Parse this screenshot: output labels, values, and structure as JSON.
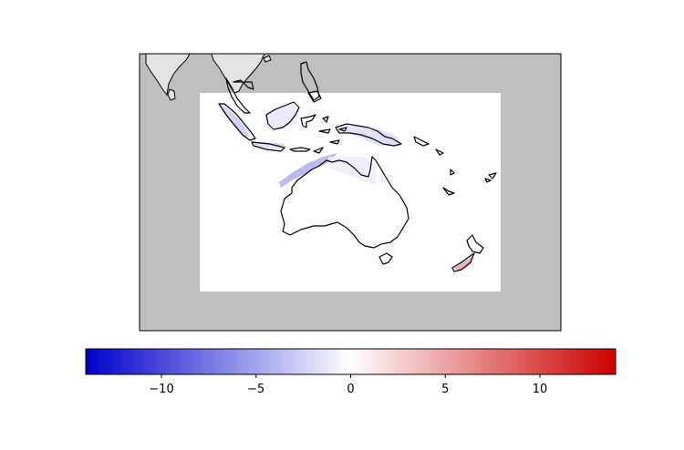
{
  "colors": {
    "ocean_mask": "#bfbfbf",
    "data_region": "#ffffff",
    "land_outside": "#e3e3e3",
    "coastline": "#000000",
    "cmap_low": "#0000cc",
    "cmap_mid": "#ffffff",
    "cmap_high": "#cc0000"
  },
  "colorbar": {
    "cmap": "bwr",
    "vmin": -14,
    "vmax": 14,
    "ticks": [
      {
        "value": -10,
        "label": "−10"
      },
      {
        "value": -5,
        "label": "−5"
      },
      {
        "value": 0,
        "label": "0"
      },
      {
        "value": 5,
        "label": "5"
      },
      {
        "value": 10,
        "label": "10"
      }
    ]
  }
}
